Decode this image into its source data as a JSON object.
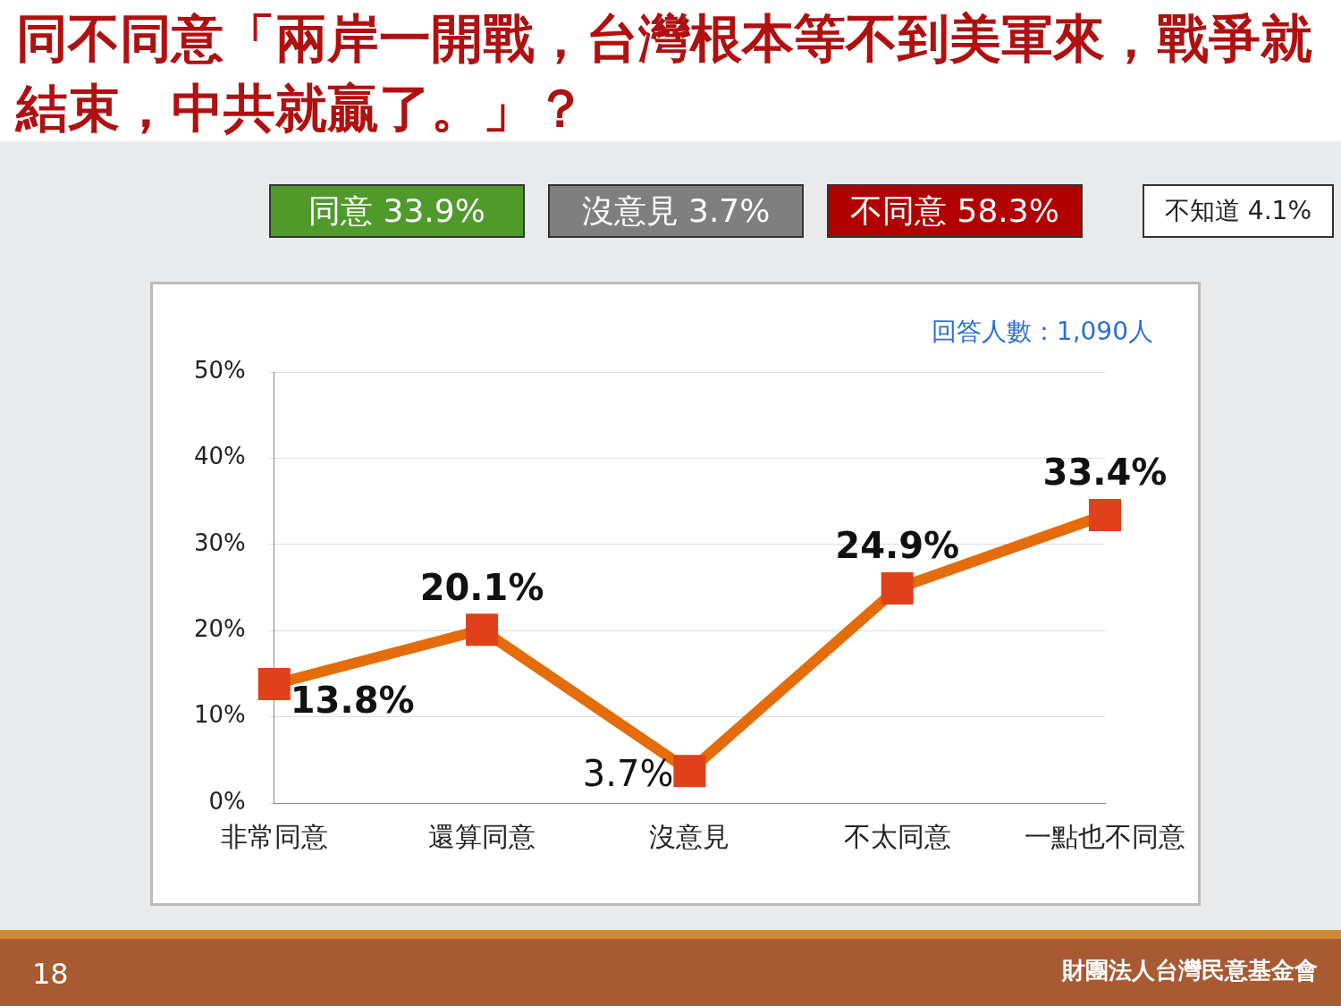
{
  "chart_data": {
    "type": "line",
    "title": "同不同意「兩岸一開戰，台灣根本等不到美軍來，戰爭就結束，中共就贏了。」？",
    "categories": [
      "非常同意",
      "還算同意",
      "沒意見",
      "不太同意",
      "一點也不同意"
    ],
    "series": [
      {
        "color": "#e46c0a",
        "values": [
          13.8,
          20.1,
          3.7,
          24.9,
          33.4
        ],
        "value_labels": [
          "13.8%",
          "20.1%",
          "3.7%",
          "24.9%",
          "33.4%"
        ]
      }
    ],
    "ylim": [
      0,
      50
    ],
    "yticks": [
      {
        "value": 0,
        "label": "0%"
      },
      {
        "value": 10,
        "label": "10%"
      },
      {
        "value": 20,
        "label": "20%"
      },
      {
        "value": 30,
        "label": "30%"
      },
      {
        "value": 40,
        "label": "40%"
      },
      {
        "value": 50,
        "label": "50%"
      }
    ],
    "grid": "y",
    "legend": false,
    "marker": "square",
    "line_style": "solid",
    "annotations": [
      "同意 33.9%",
      "沒意見 3.7%",
      "不同意 58.3%",
      "不知道 4.1%",
      "回答人數：1,090人",
      "18",
      "財團法人台灣民意基金會"
    ]
  }
}
